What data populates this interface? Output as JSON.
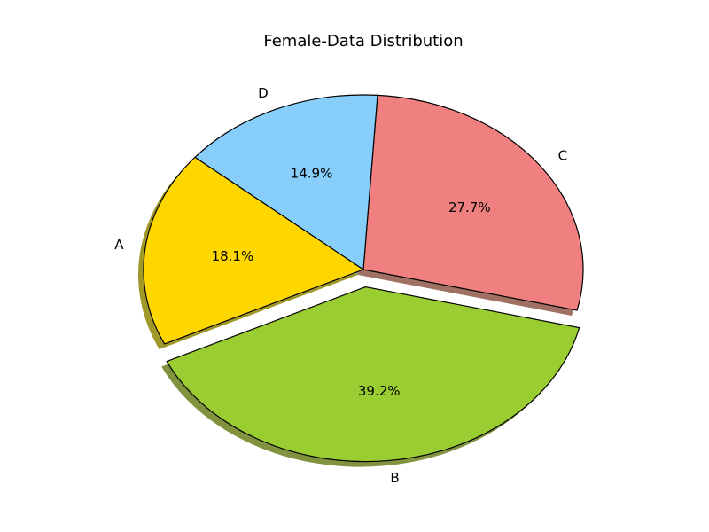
{
  "chart_data": {
    "type": "pie",
    "title": "Female-Data Distribution",
    "categories": [
      "A",
      "B",
      "C",
      "D"
    ],
    "values": [
      18.1,
      39.2,
      27.7,
      14.9
    ],
    "value_labels": [
      "18.1%",
      "39.2%",
      "27.7%",
      "14.9%"
    ],
    "colors": [
      "#FFD700",
      "#9ACD32",
      "#F08080",
      "#87CEFA"
    ],
    "exploded": [
      "B"
    ],
    "shadow": true,
    "start_angle_deg": 140,
    "direction": "counterclockwise"
  }
}
